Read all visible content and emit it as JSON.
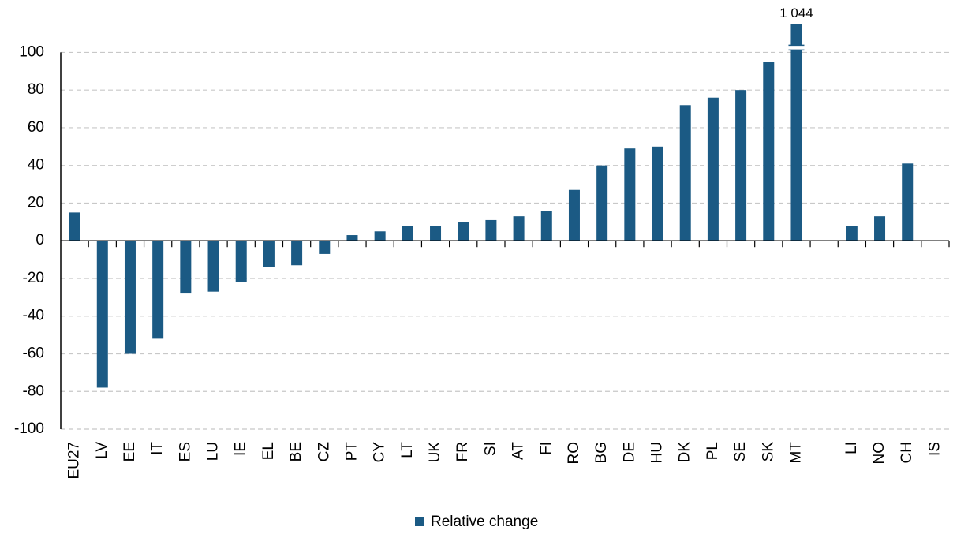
{
  "chart_data": {
    "type": "bar",
    "categories": [
      "EU27",
      "LV",
      "EE",
      "IT",
      "ES",
      "LU",
      "IE",
      "EL",
      "BE",
      "CZ",
      "PT",
      "CY",
      "LT",
      "UK",
      "FR",
      "SI",
      "AT",
      "FI",
      "RO",
      "BG",
      "DE",
      "HU",
      "DK",
      "PL",
      "SE",
      "SK",
      "MT",
      null,
      "LI",
      "NO",
      "CH",
      "IS"
    ],
    "series": [
      {
        "name": "Relative change",
        "color": "#1b5a84",
        "values": [
          15,
          -78,
          -60,
          -52,
          -28,
          -27,
          -22,
          -14,
          -13,
          -7,
          3,
          5,
          8,
          8,
          10,
          11,
          13,
          16,
          27,
          40,
          49,
          50,
          72,
          76,
          80,
          95,
          1044,
          null,
          8,
          13,
          41,
          null
        ],
        "value_labels": [
          null,
          null,
          null,
          null,
          null,
          null,
          null,
          null,
          null,
          null,
          null,
          null,
          null,
          null,
          null,
          null,
          null,
          null,
          null,
          null,
          null,
          null,
          null,
          null,
          null,
          null,
          "1 044",
          null,
          null,
          null,
          null,
          null
        ]
      }
    ],
    "ylim": [
      -100,
      115
    ],
    "yticks": [
      -100,
      -80,
      -60,
      -40,
      -20,
      0,
      20,
      40,
      60,
      80,
      100
    ],
    "grid": true,
    "legend": "bottom"
  }
}
